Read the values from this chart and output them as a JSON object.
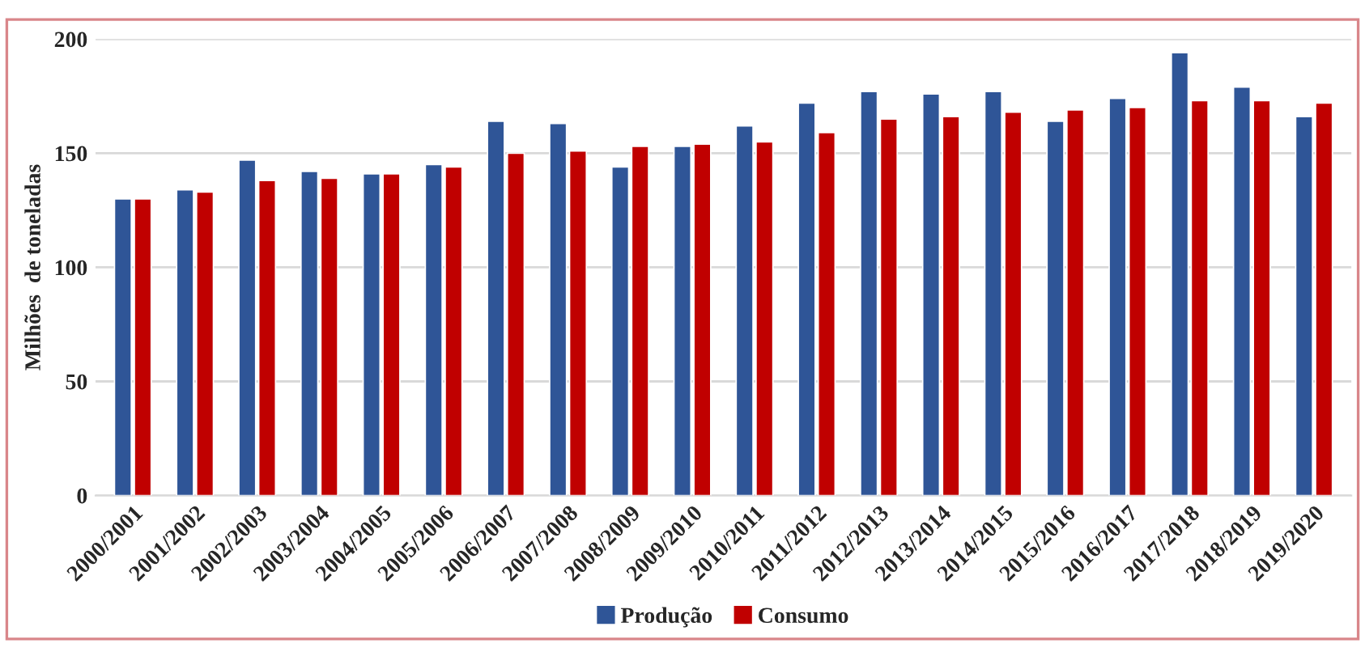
{
  "chart_data": {
    "type": "bar",
    "ylabel": "Milhões  de toneladas",
    "categories": [
      "2000/2001",
      "2001/2002",
      "2002/2003",
      "2003/2004",
      "2004/2005",
      "2005/2006",
      "2006/2007",
      "2007/2008",
      "2008/2009",
      "2009/2010",
      "2010/2011",
      "2011/2012",
      "2012/2013",
      "2013/2014",
      "2014/2015",
      "2015/2016",
      "2016/2017",
      "2017/2018",
      "2018/2019",
      "2019/2020"
    ],
    "series": [
      {
        "name": "Produção",
        "color": "#2f5597",
        "values": [
          130,
          134,
          147,
          142,
          141,
          145,
          164,
          163,
          144,
          153,
          162,
          172,
          177,
          176,
          177,
          164,
          174,
          194,
          179,
          166
        ]
      },
      {
        "name": "Consumo",
        "color": "#c00000",
        "values": [
          130,
          133,
          138,
          139,
          141,
          144,
          150,
          151,
          153,
          154,
          155,
          159,
          165,
          166,
          168,
          169,
          170,
          173,
          173,
          172
        ]
      }
    ],
    "ylim": [
      0,
      200
    ],
    "yticks": [
      0,
      50,
      100,
      150,
      200
    ],
    "grid": "y",
    "legend": "bottom"
  }
}
